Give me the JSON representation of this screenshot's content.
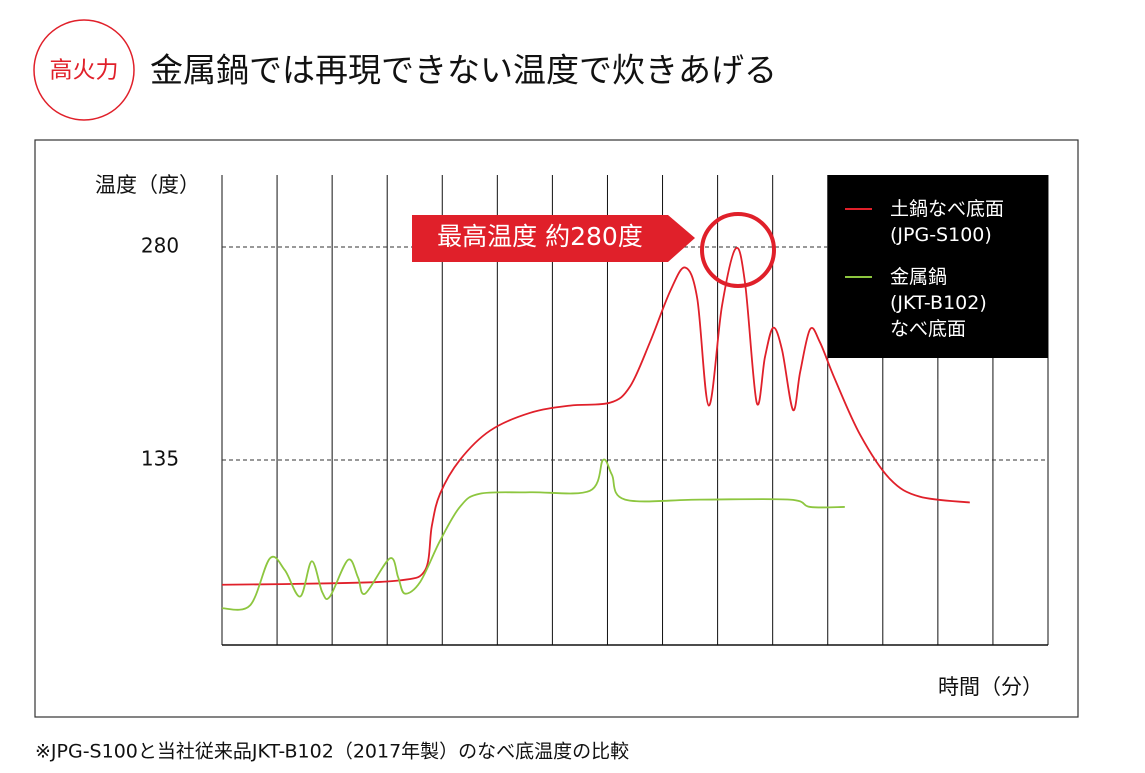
{
  "header": {
    "badge": "高火力",
    "title": "金属鍋では再現できない温度で炊きあげる"
  },
  "chart_data": {
    "type": "line",
    "y_label": "温度（度）",
    "x_label": "時間（分）",
    "annotation": "最高温度 約280度",
    "ylim": [
      9,
      329
    ],
    "yticks": [
      135,
      280
    ],
    "grid": true,
    "xlim": [
      0,
      15
    ],
    "x_divisions": 15,
    "legend": "top-right",
    "series": [
      {
        "name": "土鍋なべ底面\n(JPG-S100)",
        "color": "#e0202a",
        "x": [
          0,
          1.96,
          3.23,
          3.69,
          3.81,
          3.96,
          4.32,
          4.87,
          5.59,
          6.32,
          7.05,
          7.41,
          7.77,
          8.14,
          8.41,
          8.63,
          8.84,
          9.08,
          9.33,
          9.5,
          9.71,
          9.86,
          10.01,
          10.17,
          10.37,
          10.5,
          10.68,
          10.86,
          11.13,
          11.59,
          12.13,
          12.67,
          13.58
        ],
        "values": [
          50,
          51,
          53,
          60,
          90,
          112,
          135,
          155,
          167,
          172,
          174,
          185,
          215,
          250,
          266,
          245,
          172,
          240,
          279,
          255,
          174,
          205,
          225,
          210,
          169,
          195,
          224,
          215,
          190,
          152,
          122,
          110,
          106
        ]
      },
      {
        "name": "金属鍋\n(JKT-B102)\nなべ底面",
        "color": "#8dc63f",
        "x": [
          0,
          0.51,
          0.87,
          1.14,
          1.42,
          1.63,
          1.82,
          1.96,
          2.29,
          2.47,
          2.6,
          3.05,
          3.2,
          3.32,
          3.6,
          3.96,
          4.32,
          4.68,
          5.59,
          6.68,
          6.92,
          7.08,
          7.32,
          8.68,
          10.31,
          10.68,
          11.31
        ],
        "values": [
          34,
          36,
          68,
          60,
          42,
          66,
          45,
          42,
          67,
          55,
          44,
          68,
          55,
          44,
          52,
          80,
          103,
          112,
          113,
          114,
          135,
          125,
          108,
          108,
          108,
          103,
          103
        ]
      }
    ]
  },
  "footnote": "※JPG-S100と当社従来品JKT-B102（2017年製）のなべ底温度の比較"
}
